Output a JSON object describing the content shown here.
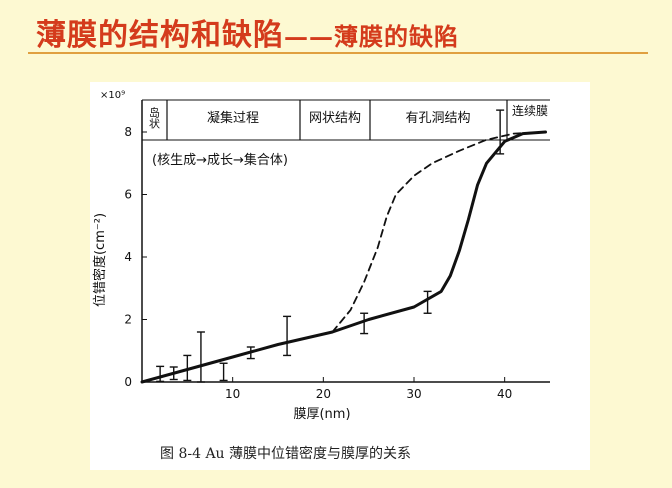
{
  "slide": {
    "title": "薄膜的结构和缺陷",
    "dash": "——",
    "subtitle": "薄膜的缺陷",
    "caption": "图 8-4   Au 薄膜中位错密度与膜厚的关系"
  },
  "chart_data": {
    "type": "line",
    "xlabel": "膜厚(nm)",
    "ylabel": "位错密度(cm⁻²)",
    "y_multiplier": "×10⁹",
    "xlim": [
      0,
      45
    ],
    "ylim": [
      0,
      8
    ],
    "x_ticks": [
      "10",
      "20",
      "30",
      "40"
    ],
    "y_ticks": [
      "0",
      "2",
      "4",
      "6",
      "8"
    ],
    "stages": [
      "岛状",
      "凝集过程",
      "网状结构",
      "有孔洞结构",
      "连续膜"
    ],
    "stage_note": "(核生成→成长→集合体)",
    "series": [
      {
        "style": "solid",
        "x": [
          0,
          5,
          10,
          15,
          21,
          25,
          30,
          33,
          34,
          35,
          36,
          37,
          38,
          40,
          42,
          44.5
        ],
        "y": [
          0,
          0.4,
          0.8,
          1.2,
          1.6,
          2.0,
          2.4,
          2.9,
          3.4,
          4.2,
          5.2,
          6.3,
          7.0,
          7.7,
          7.95,
          8.0
        ]
      },
      {
        "style": "dashed",
        "x": [
          21,
          23,
          24.5,
          26,
          27,
          28,
          30,
          32,
          35,
          38,
          41,
          44.5
        ],
        "y": [
          1.6,
          2.3,
          3.2,
          4.3,
          5.3,
          6.0,
          6.6,
          7.0,
          7.4,
          7.75,
          7.95,
          8.0
        ]
      }
    ],
    "error_bars": [
      {
        "x": 2,
        "y": 0.22,
        "lo": 0.02,
        "hi": 0.5
      },
      {
        "x": 3.5,
        "y": 0.28,
        "lo": 0.08,
        "hi": 0.48
      },
      {
        "x": 5,
        "y": 0.38,
        "lo": 0.05,
        "hi": 0.85
      },
      {
        "x": 6.5,
        "y": 0.5,
        "lo": 0.0,
        "hi": 1.6
      },
      {
        "x": 9,
        "y": 0.35,
        "lo": 0.05,
        "hi": 0.6
      },
      {
        "x": 12,
        "y": 0.92,
        "lo": 0.75,
        "hi": 1.12
      },
      {
        "x": 16,
        "y": 1.2,
        "lo": 0.85,
        "hi": 2.1
      },
      {
        "x": 24.5,
        "y": 1.85,
        "lo": 1.55,
        "hi": 2.2
      },
      {
        "x": 31.5,
        "y": 2.5,
        "lo": 2.2,
        "hi": 2.9
      },
      {
        "x": 39.5,
        "y": 7.8,
        "lo": 7.3,
        "hi": 8.7
      }
    ]
  }
}
